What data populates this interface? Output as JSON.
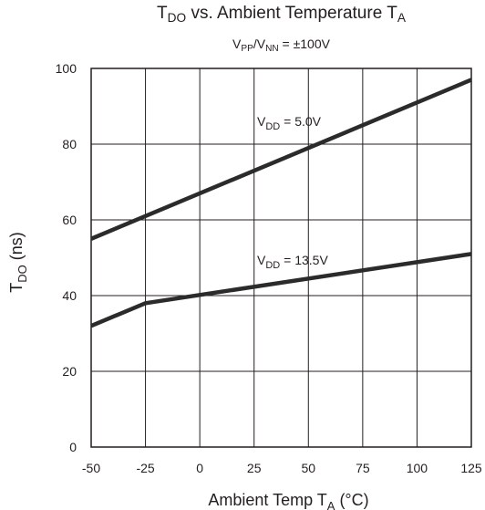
{
  "title": {
    "main": "T",
    "main_sub": "DO",
    "rest": " vs. Ambient Temperature T",
    "rest_sub": "A"
  },
  "subtitle": {
    "v1": "V",
    "v1_sub": "PP",
    "slash": "/V",
    "v2_sub": "NN",
    "value": " = ±100V"
  },
  "chart_data": {
    "type": "line",
    "title": "TDO vs. Ambient Temperature TA",
    "subtitle": "VPP/VNN = ±100V",
    "xlabel": "Ambient Temp TA (°C)",
    "ylabel": "TDO (ns)",
    "xlim": [
      -50,
      125
    ],
    "ylim": [
      0,
      100
    ],
    "x_ticks": [
      -50,
      -25,
      0,
      25,
      50,
      75,
      100,
      125
    ],
    "y_ticks": [
      0,
      20,
      40,
      60,
      80,
      100
    ],
    "x_tick_labels": [
      "-50",
      "-25",
      "0",
      "25",
      "50",
      "75",
      "100",
      "125"
    ],
    "y_tick_labels": [
      "0",
      "20",
      "40",
      "60",
      "80",
      "100"
    ],
    "grid": true,
    "line_color": "#2b2b2b",
    "series": [
      {
        "name": "VDD = 5.0V",
        "label_main": "V",
        "label_sub": "DD",
        "label_rest": " = 5.0V",
        "x": [
          -50,
          125
        ],
        "y": [
          55,
          97
        ]
      },
      {
        "name": "VDD = 13.5V",
        "label_main": "V",
        "label_sub": "DD",
        "label_rest": " = 13.5V",
        "x": [
          -50,
          -25,
          125
        ],
        "y": [
          32,
          38,
          51
        ]
      }
    ]
  }
}
